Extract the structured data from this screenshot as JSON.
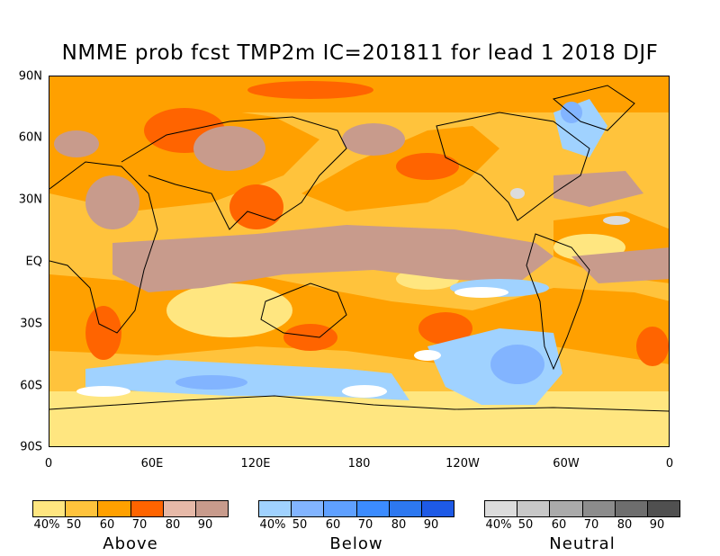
{
  "title": "NMME prob fcst TMP2m IC=201811 for lead 1 2018 DJF",
  "lat_labels": [
    "90N",
    "60N",
    "30N",
    "EQ",
    "30S",
    "60S",
    "90S"
  ],
  "lon_labels": [
    "0",
    "60E",
    "120E",
    "180",
    "120W",
    "60W",
    "0"
  ],
  "legends": [
    {
      "name": "Above",
      "ticks": [
        "40%",
        "50",
        "60",
        "70",
        "80",
        "90"
      ],
      "colors": [
        "#ffe680",
        "#ffc33c",
        "#ffa000",
        "#ff6400",
        "#e6b9a8",
        "#c89b8c"
      ]
    },
    {
      "name": "Below",
      "ticks": [
        "40%",
        "50",
        "60",
        "70",
        "80",
        "90"
      ],
      "colors": [
        "#a0d2ff",
        "#82b4ff",
        "#5fa0ff",
        "#3c8cff",
        "#2d78f0",
        "#1e5ae6"
      ]
    },
    {
      "name": "Neutral",
      "ticks": [
        "40%",
        "50",
        "60",
        "70",
        "80",
        "90"
      ],
      "colors": [
        "#dcdcdc",
        "#c8c8c8",
        "#aaaaaa",
        "#8c8c8c",
        "#6e6e6e",
        "#505050"
      ]
    }
  ],
  "colors": {
    "background_above_40": "#ffc33c",
    "land_outline": "#000000"
  }
}
